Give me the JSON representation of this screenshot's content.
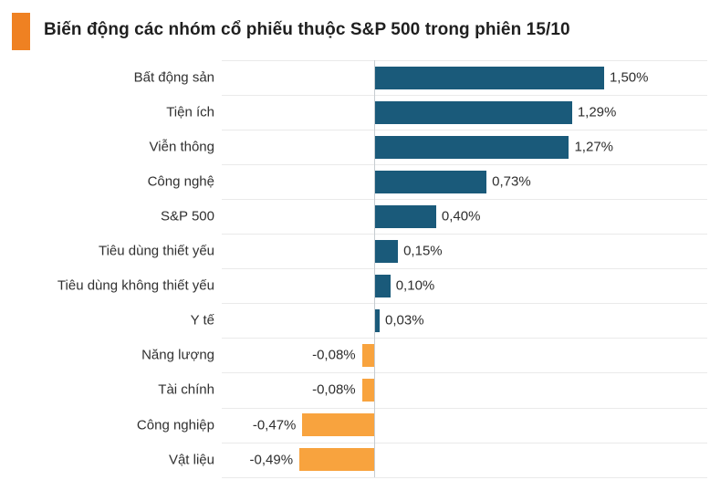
{
  "title": {
    "text": "Biến động các nhóm cổ phiếu thuộc S&P 500 trong phiên 15/10"
  },
  "colors": {
    "positive_bar": "#1a5a7a",
    "negative_bar": "#f8a33e",
    "title_marker": "#ef8122",
    "gridline": "#eaeaea",
    "axis_line": "#c6ccd1",
    "title_text": "#1f1f1f",
    "label_text": "#303030"
  },
  "chart_data": {
    "type": "bar",
    "orientation": "horizontal",
    "title": "Biến động các nhóm cổ phiếu thuộc S&P 500 trong phiên 15/10",
    "xlabel": "",
    "ylabel": "",
    "legend": "none",
    "grid": "row-separators",
    "xlim": [
      -1.0,
      2.17
    ],
    "unit": "%",
    "categories": [
      "Bất động sản",
      "Tiện ích",
      "Viễn thông",
      "Công nghệ",
      "S&P 500",
      "Tiêu dùng thiết yếu",
      "Tiêu dùng không thiết yếu",
      "Y tế",
      "Năng lượng",
      "Tài chính",
      "Công nghiệp",
      "Vật liệu"
    ],
    "values": [
      1.5,
      1.29,
      1.27,
      0.73,
      0.4,
      0.15,
      0.1,
      0.03,
      -0.08,
      -0.08,
      -0.47,
      -0.49
    ],
    "value_labels": [
      "1,50%",
      "1,29%",
      "1,27%",
      "0,73%",
      "0,40%",
      "0,15%",
      "0,10%",
      "0,03%",
      "-0,08%",
      "-0,08%",
      "-0,47%",
      "-0,49%"
    ]
  }
}
